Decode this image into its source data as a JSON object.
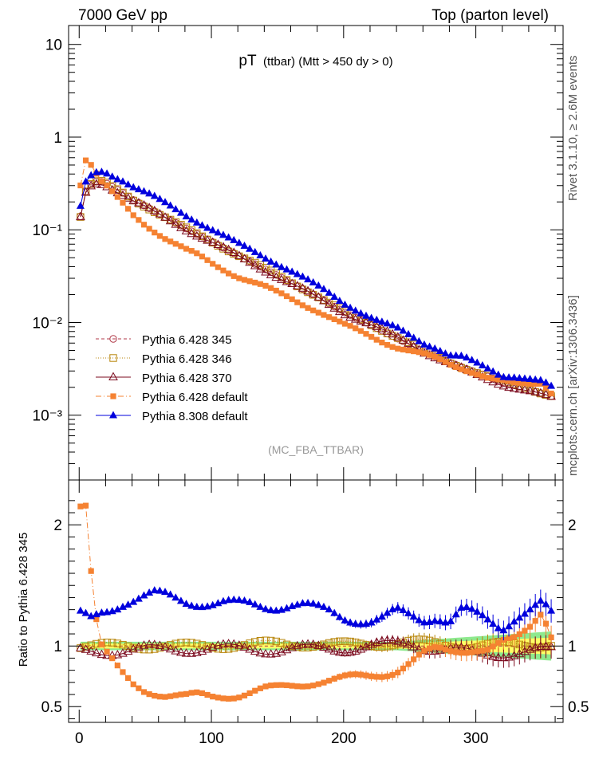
{
  "header": {
    "left": "7000 GeV pp",
    "right": "Top (parton level)"
  },
  "plot_title": {
    "main": "pT",
    "detail": "(ttbar) (Mtt > 450 dy > 0)"
  },
  "analysis_tag": "(MC_FBA_TTBAR)",
  "side_text": {
    "rivet": "Rivet 3.1.10, ≥ 2.6M events",
    "source": "mcplots.cern.ch [arXiv:1306.3436]"
  },
  "ratio_ylabel": "Ratio to Pythia 6.428 345",
  "legend": [
    {
      "label": "Pythia 6.428 345",
      "color": "#b03a48",
      "marker": "open-circle",
      "dash": "4,3"
    },
    {
      "label": "Pythia 6.428 346",
      "color": "#b8860b",
      "marker": "open-square",
      "dash": "1,2"
    },
    {
      "label": "Pythia 6.428 370",
      "color": "#7b0a1e",
      "marker": "open-triangle",
      "dash": ""
    },
    {
      "label": "Pythia 6.428 default",
      "color": "#f58232",
      "marker": "filled-square",
      "dash": "7,3,1,3"
    },
    {
      "label": "Pythia 8.308 default",
      "color": "#0000dd",
      "marker": "filled-triangle",
      "dash": ""
    }
  ],
  "chart_data": {
    "type": "line",
    "title": "pT (ttbar) (Mtt > 450 dy > 0)",
    "xlabel": "",
    "ylabel": "",
    "xlim": [
      -8,
      366
    ],
    "main_ylim": [
      0.0002,
      16
    ],
    "main_yscale": "log",
    "main_yticks": [
      "10⁻³",
      "10⁻²",
      "10⁻¹",
      "1",
      "10"
    ],
    "ratio_ylim": [
      0.37,
      2.37
    ],
    "ratio_yticks": [
      "0.5",
      "1",
      "2"
    ],
    "x_ticks": [
      "0",
      "100",
      "200",
      "300"
    ],
    "x": [
      1,
      5,
      9,
      13,
      17,
      21,
      25,
      29,
      33,
      37,
      41,
      45,
      49,
      53,
      57,
      61,
      65,
      69,
      73,
      77,
      81,
      85,
      89,
      93,
      97,
      101,
      105,
      109,
      113,
      117,
      121,
      125,
      129,
      133,
      137,
      141,
      145,
      149,
      153,
      157,
      161,
      165,
      169,
      173,
      177,
      181,
      185,
      189,
      193,
      197,
      201,
      205,
      209,
      213,
      217,
      221,
      225,
      229,
      233,
      237,
      241,
      245,
      249,
      253,
      257,
      261,
      265,
      269,
      273,
      277,
      281,
      285,
      289,
      293,
      297,
      301,
      305,
      309,
      313,
      317,
      321,
      325,
      329,
      333,
      337,
      341,
      345,
      349,
      353,
      357
    ],
    "reference_curve": {
      "name": "Pythia 6.428 345",
      "points": [
        [
          1,
          0.14
        ],
        [
          5,
          0.26
        ],
        [
          9,
          0.31
        ],
        [
          13,
          0.33
        ],
        [
          17,
          0.33
        ],
        [
          21,
          0.315
        ],
        [
          25,
          0.29
        ],
        [
          33,
          0.25
        ],
        [
          41,
          0.21
        ],
        [
          50,
          0.18
        ],
        [
          60,
          0.15
        ],
        [
          80,
          0.105
        ],
        [
          100,
          0.075
        ],
        [
          120,
          0.053
        ],
        [
          140,
          0.038
        ],
        [
          160,
          0.027
        ],
        [
          180,
          0.019
        ],
        [
          200,
          0.013
        ],
        [
          220,
          0.0095
        ],
        [
          240,
          0.0068
        ],
        [
          260,
          0.0049
        ],
        [
          280,
          0.0037
        ],
        [
          300,
          0.0029
        ],
        [
          320,
          0.0023
        ],
        [
          340,
          0.0019
        ],
        [
          357,
          0.0016
        ]
      ]
    },
    "series": [
      {
        "name": "Pythia 6.428 345",
        "ratio_points": [
          [
            1,
            1.0
          ],
          [
            357,
            1.0
          ]
        ],
        "ratio_noise": 0.0
      },
      {
        "name": "Pythia 6.428 346",
        "ratio_points": [
          [
            1,
            1.0
          ],
          [
            100,
            1.0
          ],
          [
            150,
            1.02
          ],
          [
            200,
            1.01
          ],
          [
            250,
            1.03
          ],
          [
            300,
            1.0
          ],
          [
            357,
            1.02
          ]
        ],
        "ratio_noise": 0.03
      },
      {
        "name": "Pythia 6.428 370",
        "ratio_points": [
          [
            1,
            0.95
          ],
          [
            50,
            0.97
          ],
          [
            100,
            0.98
          ],
          [
            150,
            0.97
          ],
          [
            200,
            0.98
          ],
          [
            250,
            1.02
          ],
          [
            300,
            0.93
          ],
          [
            357,
            0.96
          ]
        ],
        "ratio_noise": 0.04
      },
      {
        "name": "Pythia 6.428 default",
        "ratio_points": [
          [
            1,
            2.18
          ],
          [
            5,
            2.18
          ],
          [
            9,
            1.63
          ],
          [
            13,
            1.22
          ],
          [
            17,
            1.0
          ],
          [
            21,
            0.93
          ],
          [
            25,
            0.87
          ],
          [
            29,
            0.81
          ],
          [
            33,
            0.76
          ],
          [
            37,
            0.72
          ],
          [
            41,
            0.68
          ],
          [
            49,
            0.64
          ],
          [
            57,
            0.62
          ],
          [
            65,
            0.6
          ],
          [
            73,
            0.59
          ],
          [
            81,
            0.58
          ],
          [
            90,
            0.59
          ],
          [
            100,
            0.58
          ],
          [
            110,
            0.59
          ],
          [
            120,
            0.6
          ],
          [
            130,
            0.62
          ],
          [
            140,
            0.64
          ],
          [
            150,
            0.65
          ],
          [
            160,
            0.67
          ],
          [
            170,
            0.69
          ],
          [
            180,
            0.71
          ],
          [
            190,
            0.72
          ],
          [
            200,
            0.73
          ],
          [
            210,
            0.74
          ],
          [
            220,
            0.75
          ],
          [
            230,
            0.77
          ],
          [
            240,
            0.8
          ],
          [
            250,
            0.86
          ],
          [
            260,
            0.93
          ],
          [
            270,
            0.97
          ],
          [
            280,
            0.96
          ],
          [
            290,
            0.97
          ],
          [
            300,
            0.98
          ],
          [
            310,
            0.97
          ],
          [
            320,
            1.02
          ],
          [
            330,
            1.05
          ],
          [
            340,
            1.15
          ],
          [
            350,
            1.3
          ],
          [
            357,
            1.1
          ]
        ],
        "ratio_noise": 0.03
      },
      {
        "name": "Pythia 8.308 default",
        "ratio_points": [
          [
            1,
            1.25
          ],
          [
            9,
            1.22
          ],
          [
            17,
            1.28
          ],
          [
            25,
            1.32
          ],
          [
            33,
            1.36
          ],
          [
            41,
            1.38
          ],
          [
            49,
            1.4
          ],
          [
            57,
            1.42
          ],
          [
            65,
            1.41
          ],
          [
            73,
            1.39
          ],
          [
            81,
            1.37
          ],
          [
            90,
            1.36
          ],
          [
            100,
            1.35
          ],
          [
            110,
            1.35
          ],
          [
            120,
            1.34
          ],
          [
            130,
            1.34
          ],
          [
            140,
            1.33
          ],
          [
            150,
            1.33
          ],
          [
            160,
            1.34
          ],
          [
            170,
            1.33
          ],
          [
            180,
            1.3
          ],
          [
            190,
            1.28
          ],
          [
            200,
            1.24
          ],
          [
            210,
            1.22
          ],
          [
            220,
            1.2
          ],
          [
            230,
            1.22
          ],
          [
            240,
            1.28
          ],
          [
            250,
            1.25
          ],
          [
            260,
            1.22
          ],
          [
            270,
            1.25
          ],
          [
            280,
            1.2
          ],
          [
            290,
            1.3
          ],
          [
            300,
            1.25
          ],
          [
            310,
            1.2
          ],
          [
            320,
            1.15
          ],
          [
            330,
            1.25
          ],
          [
            340,
            1.3
          ],
          [
            350,
            1.35
          ],
          [
            357,
            1.25
          ]
        ],
        "ratio_noise": 0.04
      }
    ],
    "ref_band": {
      "inner_color": "#ffff66",
      "outer_color": "#8ee98e",
      "inner_halfwidth": 0.02,
      "outer_halfwidth": 0.035
    },
    "grid": false,
    "legend_position": "lower-left"
  }
}
